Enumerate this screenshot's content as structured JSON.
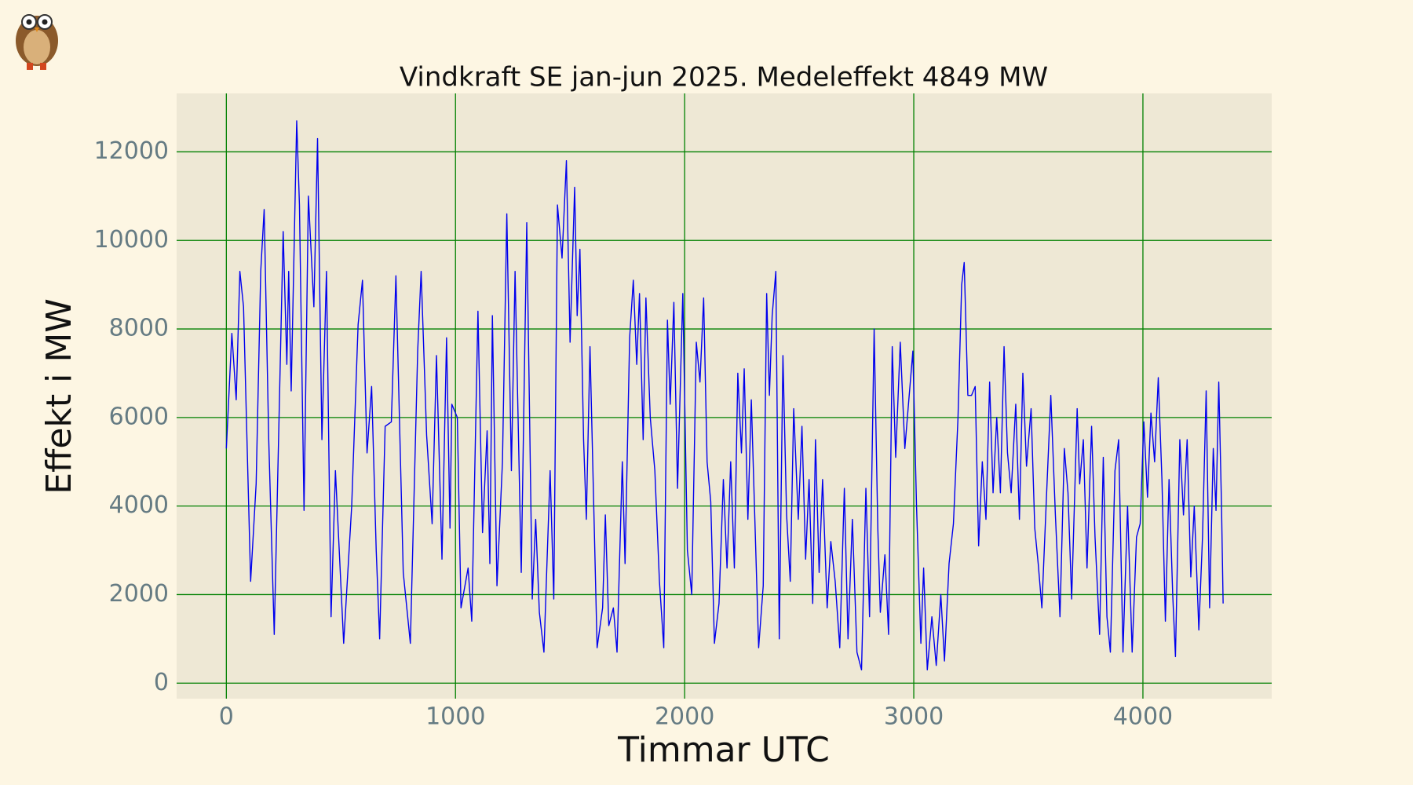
{
  "chart_data": {
    "type": "line",
    "title": "Vindkraft SE jan-jun 2025. Medeleffekt 4849 MW",
    "xlabel": "Timmar UTC",
    "ylabel": "Effekt i MW",
    "color": "#0000ee",
    "grid": true,
    "grid_color": "#008000",
    "xlim": [
      -217,
      4562
    ],
    "ylim": [
      -350,
      13320
    ],
    "xticks": [
      0,
      1000,
      2000,
      3000,
      4000
    ],
    "yticks": [
      0,
      2000,
      4000,
      6000,
      8000,
      10000,
      12000
    ],
    "x": [
      0,
      24,
      43,
      59,
      75,
      106,
      130,
      150,
      165,
      185,
      209,
      248,
      264,
      272,
      283,
      307,
      319,
      339,
      358,
      382,
      398,
      417,
      437,
      457,
      476,
      512,
      547,
      575,
      594,
      614,
      634,
      654,
      669,
      693,
      720,
      740,
      772,
      803,
      835,
      850,
      874,
      898,
      917,
      941,
      961,
      976,
      984,
      1008,
      1024,
      1055,
      1071,
      1098,
      1118,
      1138,
      1150,
      1161,
      1181,
      1205,
      1224,
      1244,
      1260,
      1287,
      1311,
      1335,
      1350,
      1366,
      1386,
      1413,
      1429,
      1445,
      1465,
      1484,
      1500,
      1520,
      1531,
      1543,
      1559,
      1571,
      1587,
      1602,
      1618,
      1642,
      1654,
      1669,
      1689,
      1705,
      1728,
      1740,
      1760,
      1776,
      1791,
      1803,
      1819,
      1831,
      1850,
      1870,
      1890,
      1909,
      1925,
      1937,
      1953,
      1969,
      1992,
      2012,
      2031,
      2051,
      2067,
      2083,
      2098,
      2114,
      2130,
      2150,
      2169,
      2185,
      2201,
      2217,
      2232,
      2248,
      2260,
      2276,
      2291,
      2307,
      2323,
      2343,
      2358,
      2370,
      2382,
      2398,
      2413,
      2429,
      2445,
      2461,
      2476,
      2496,
      2512,
      2528,
      2543,
      2559,
      2571,
      2587,
      2602,
      2622,
      2638,
      2657,
      2677,
      2697,
      2713,
      2732,
      2752,
      2772,
      2791,
      2807,
      2827,
      2843,
      2854,
      2874,
      2890,
      2906,
      2921,
      2941,
      2961,
      2980,
      2996,
      3012,
      3031,
      3043,
      3059,
      3079,
      3098,
      3118,
      3134,
      3154,
      3173,
      3193,
      3209,
      3220,
      3236,
      3252,
      3268,
      3283,
      3299,
      3315,
      3331,
      3346,
      3362,
      3378,
      3394,
      3409,
      3425,
      3445,
      3461,
      3476,
      3492,
      3512,
      3528,
      3543,
      3559,
      3579,
      3598,
      3618,
      3638,
      3657,
      3673,
      3689,
      3713,
      3724,
      3740,
      3756,
      3776,
      3791,
      3811,
      3827,
      3843,
      3858,
      3878,
      3894,
      3913,
      3933,
      3953,
      3972,
      3988,
      4004,
      4020,
      4035,
      4051,
      4067,
      4083,
      4098,
      4114,
      4130,
      4142,
      4161,
      4177,
      4193,
      4209,
      4224,
      4244,
      4260,
      4276,
      4291,
      4307,
      4319,
      4331,
      4343,
      4350
    ],
    "values": [
      5300,
      7900,
      6400,
      9300,
      8500,
      2300,
      4500,
      9300,
      10700,
      5500,
      1100,
      10200,
      7200,
      9300,
      6600,
      12700,
      10800,
      3900,
      11000,
      8500,
      12300,
      5500,
      9300,
      1500,
      4800,
      900,
      4000,
      8100,
      9100,
      5200,
      6700,
      3000,
      1000,
      5800,
      5900,
      9200,
      2500,
      900,
      7500,
      9300,
      5600,
      3600,
      7400,
      2800,
      7800,
      3500,
      6300,
      6000,
      1700,
      2600,
      1400,
      8400,
      3400,
      5700,
      2700,
      8300,
      2200,
      5000,
      10600,
      4800,
      9300,
      2500,
      10400,
      1900,
      3700,
      1600,
      700,
      4800,
      1900,
      10800,
      9600,
      11800,
      7700,
      11200,
      8300,
      9800,
      5500,
      3700,
      7600,
      4300,
      800,
      1700,
      3800,
      1300,
      1700,
      700,
      5000,
      2700,
      7800,
      9100,
      7200,
      8800,
      5500,
      8700,
      6000,
      4800,
      2300,
      800,
      8200,
      6300,
      8600,
      4400,
      8800,
      3000,
      2000,
      7700,
      6800,
      8700,
      5000,
      4100,
      900,
      1800,
      4600,
      2600,
      5000,
      2600,
      7000,
      5200,
      7100,
      3700,
      6400,
      3600,
      800,
      2200,
      8800,
      6500,
      8300,
      9300,
      1000,
      7400,
      3800,
      2300,
      6200,
      3700,
      5800,
      2800,
      4600,
      1800,
      5500,
      2500,
      4600,
      1700,
      3200,
      2300,
      800,
      4400,
      1000,
      3700,
      700,
      300,
      4400,
      1500,
      8000,
      3500,
      1600,
      2900,
      1100,
      7600,
      5100,
      7700,
      5300,
      6500,
      7500,
      4000,
      900,
      2600,
      300,
      1500,
      400,
      2000,
      500,
      2700,
      3600,
      6000,
      9000,
      9500,
      6500,
      6500,
      6700,
      3100,
      5000,
      3700,
      6800,
      4300,
      6000,
      4300,
      7600,
      5200,
      4300,
      6300,
      3700,
      7000,
      4900,
      6200,
      3500,
      2700,
      1700,
      4200,
      6500,
      3800,
      1500,
      5300,
      4300,
      1900,
      6200,
      4500,
      5500,
      2600,
      5800,
      3300,
      1100,
      5100,
      1500,
      700,
      4800,
      5500,
      700,
      4000,
      700,
      3300,
      3600,
      5900,
      4200,
      6100,
      5000,
      6900,
      4600,
      1400,
      4600,
      2000,
      600,
      5500,
      3800,
      5500,
      2400,
      4000,
      1200,
      3300,
      6600,
      1700,
      5300,
      3900,
      6800,
      4000,
      1800
    ]
  }
}
